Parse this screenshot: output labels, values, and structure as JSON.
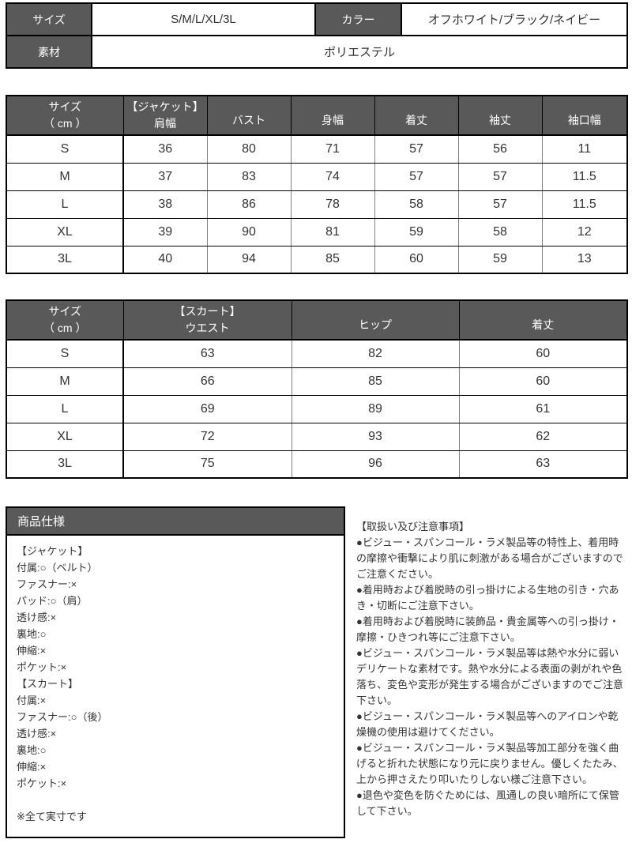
{
  "colors": {
    "header_bg": "#595959",
    "header_text": "#ffffff",
    "border_dark": "#000000",
    "border_light": "#808080",
    "body_text": "#333333"
  },
  "info_table": {
    "size_label": "サイズ",
    "size_value": "S/M/L/XL/3L",
    "color_label": "カラー",
    "color_value": "オフホワイト/ブラック/ネイビー",
    "material_label": "素材",
    "material_value": "ポリエステル"
  },
  "jacket_table": {
    "headers": [
      {
        "line1": "サイズ",
        "line2": "（ cm ）"
      },
      {
        "line1": "【ジャケット】",
        "line2": "肩幅"
      },
      "バスト",
      "身幅",
      "着丈",
      "袖丈",
      "袖口幅"
    ],
    "rows": [
      [
        "S",
        "36",
        "80",
        "71",
        "57",
        "56",
        "11"
      ],
      [
        "M",
        "37",
        "83",
        "74",
        "57",
        "57",
        "11.5"
      ],
      [
        "L",
        "38",
        "86",
        "78",
        "58",
        "57",
        "11.5"
      ],
      [
        "XL",
        "39",
        "90",
        "81",
        "59",
        "58",
        "12"
      ],
      [
        "3L",
        "40",
        "94",
        "85",
        "60",
        "59",
        "13"
      ]
    ]
  },
  "skirt_table": {
    "headers": [
      {
        "line1": "サイズ",
        "line2": "（ cm ）"
      },
      {
        "line1": "【スカート】",
        "line2": "ウエスト"
      },
      "ヒップ",
      "着丈"
    ],
    "rows": [
      [
        "S",
        "63",
        "82",
        "60"
      ],
      [
        "M",
        "66",
        "85",
        "60"
      ],
      [
        "L",
        "69",
        "89",
        "61"
      ],
      [
        "XL",
        "72",
        "93",
        "62"
      ],
      [
        "3L",
        "75",
        "96",
        "63"
      ]
    ]
  },
  "spec_box": {
    "title": "商品仕様",
    "jacket_heading": "【ジャケット】",
    "jacket_items": [
      "付属:○（ベルト）",
      "ファスナー:×",
      "パッド:○（肩）",
      "透け感:×",
      "裏地:○",
      "伸縮:×",
      "ポケット:×"
    ],
    "skirt_heading": "【スカート】",
    "skirt_items": [
      "付属:×",
      "ファスナー:○（後）",
      "透け感:×",
      "裏地:○",
      "伸縮:×",
      "ポケット:×"
    ],
    "note": "※全て実寸です"
  },
  "handling_notes": {
    "title": "【取扱い及び注意事項】",
    "bullets": [
      "●ビジュー・スパンコール・ラメ製品等の特性上、着用時の摩擦や衝撃により肌に刺激がある場合がございますのでご注意ください。",
      "●着用時および着脱時の引っ掛けによる生地の引き・穴あき・切断にご注意下さい。",
      "●着用時および着脱時に装飾品・貴金属等への引っ掛け・摩擦・ひきつれ等にご注意下さい。",
      "●ビジュー・スパンコール・ラメ製品等は熱や水分に弱いデリケートな素材です。熱や水分による表面の剥がれや色落ち、変色や変形が発生する場合がございますのでご注意下さい。",
      "●ビジュー・スパンコール・ラメ製品等へのアイロンや乾燥機の使用は避けてください。",
      "●ビジュー・スパンコール・ラメ製品等加工部分を強く曲げると折れた状態になり元に戻りません。優しくたたみ、上から押さえたり叩いたりしない様ご注意下さい。",
      "●退色や変色を防ぐためには、風通しの良い暗所にて保管して下さい。"
    ]
  }
}
